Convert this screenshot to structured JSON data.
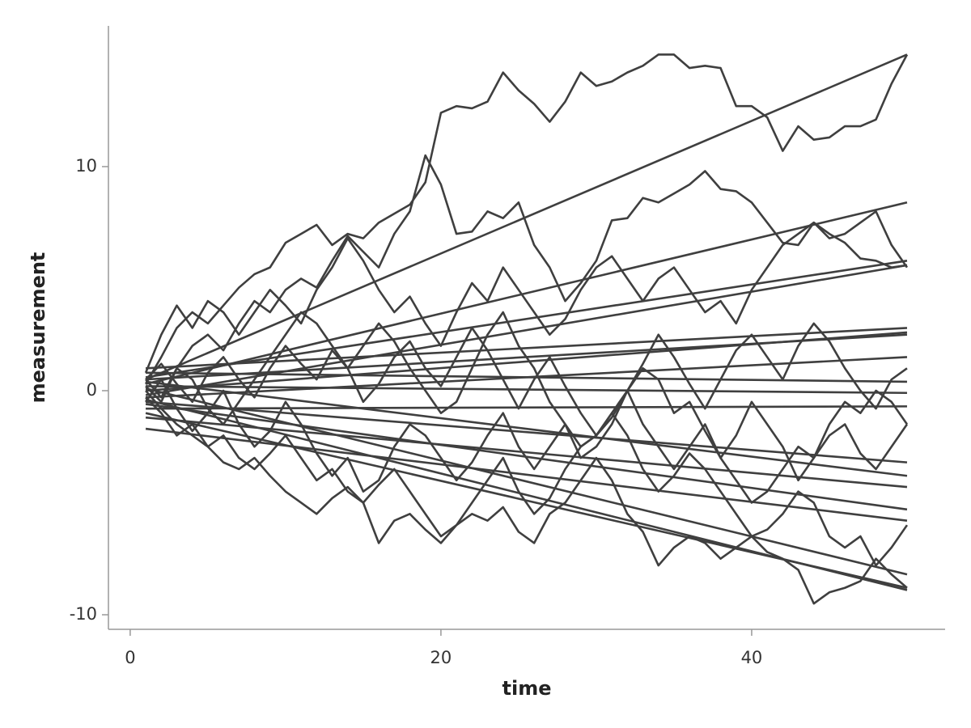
{
  "chart_data": {
    "type": "line",
    "x_label": "time",
    "y_label": "measurement",
    "color": "#3f3f3f",
    "x": [
      1,
      2,
      3,
      4,
      5,
      6,
      7,
      8,
      9,
      10,
      11,
      12,
      13,
      14,
      15,
      16,
      17,
      18,
      19,
      20,
      21,
      22,
      23,
      24,
      25,
      26,
      27,
      28,
      29,
      30,
      31,
      32,
      33,
      34,
      35,
      36,
      37,
      38,
      39,
      40,
      41,
      42,
      43,
      44,
      45,
      46,
      47,
      48,
      49,
      50
    ],
    "xlim": [
      -1.4,
      52.45
    ],
    "xticks": [
      0,
      20,
      40
    ],
    "ylim": [
      -10.65,
      16.28
    ],
    "yticks": [
      -10,
      0,
      10
    ],
    "series": [
      {
        "values": [
          0.3,
          1.5,
          2.8,
          3.5,
          3.0,
          3.8,
          4.6,
          5.2,
          5.5,
          6.6,
          7.0,
          7.4,
          6.5,
          7.0,
          6.8,
          7.5,
          7.9,
          8.3,
          9.3,
          12.4,
          12.7,
          12.6,
          12.9,
          14.2,
          13.4,
          12.8,
          12.0,
          12.9,
          14.2,
          13.6,
          13.8,
          14.2,
          14.5,
          15.0,
          15.0,
          14.4,
          14.5,
          14.4,
          12.7,
          12.7,
          12.2,
          10.7,
          11.8,
          11.2,
          11.3,
          11.8,
          11.8,
          12.1,
          13.7,
          15.0
        ]
      },
      {
        "values": [
          0.5,
          -0.3,
          1.0,
          2.0,
          2.5,
          1.8,
          3.0,
          4.0,
          3.5,
          4.5,
          5.0,
          4.6,
          5.8,
          6.9,
          6.2,
          5.5,
          7.0,
          8.0,
          10.5,
          9.2,
          7.0,
          7.1,
          8.0,
          7.7,
          8.4,
          6.5,
          5.5,
          4.0,
          4.8,
          5.8,
          7.6,
          7.7,
          8.6,
          8.4,
          8.8,
          9.2,
          9.8,
          9.0,
          8.9,
          8.4,
          7.5,
          6.6,
          6.5,
          7.5,
          7.0,
          6.6,
          5.9,
          5.8,
          5.5,
          5.6
        ]
      },
      {
        "values": [
          0.0,
          -0.8,
          -1.5,
          -2.0,
          -2.5,
          -3.2,
          -3.5,
          -3.0,
          -3.8,
          -4.5,
          -5.0,
          -5.5,
          -4.8,
          -4.3,
          -5.0,
          -6.8,
          -5.8,
          -5.5,
          -6.2,
          -6.8,
          -6.0,
          -5.5,
          -5.8,
          -5.2,
          -6.3,
          -6.8,
          -5.5,
          -5.0,
          -4.0,
          -3.0,
          -4.0,
          -5.5,
          -6.3,
          -7.8,
          -7.0,
          -6.5,
          -6.8,
          -7.5,
          -7.0,
          -6.5,
          -7.2,
          -7.5,
          -8.0,
          -9.5,
          -9.0,
          -8.8,
          -8.5,
          -7.5,
          -8.2,
          -8.8
        ]
      },
      {
        "values": [
          0.5,
          1.2,
          0.3,
          -0.5,
          0.8,
          1.5,
          0.5,
          -0.3,
          1.0,
          2.0,
          1.2,
          0.5,
          1.8,
          1.0,
          -0.5,
          0.3,
          1.5,
          2.2,
          1.0,
          0.2,
          1.5,
          2.8,
          1.8,
          0.5,
          -0.8,
          0.5,
          1.5,
          0.2,
          -1.0,
          -2.0,
          -1.2,
          0.0,
          1.2,
          2.5,
          1.5,
          0.3,
          -0.8,
          0.5,
          1.8,
          2.5,
          1.5,
          0.5,
          2.0,
          3.0,
          2.2,
          1.0,
          0.0,
          -0.8,
          0.5,
          1.0
        ]
      },
      {
        "values": [
          -0.3,
          -1.0,
          -2.0,
          -1.5,
          -2.5,
          -2.0,
          -3.0,
          -3.5,
          -2.8,
          -2.0,
          -3.0,
          -4.0,
          -3.5,
          -4.5,
          -5.0,
          -4.2,
          -3.5,
          -4.5,
          -5.5,
          -6.5,
          -6.0,
          -5.0,
          -4.0,
          -3.0,
          -4.5,
          -5.5,
          -4.8,
          -3.5,
          -2.5,
          -2.0,
          -1.0,
          -2.0,
          -3.5,
          -4.5,
          -3.8,
          -2.8,
          -3.5,
          -4.5,
          -5.5,
          -6.5,
          -6.2,
          -5.5,
          -4.5,
          -5.0,
          -6.5,
          -7.0,
          -6.5,
          -7.8,
          -7.0,
          -6.0
        ]
      },
      {
        "values": [
          0.8,
          2.5,
          3.8,
          2.8,
          4.0,
          3.5,
          2.5,
          3.5,
          4.5,
          3.8,
          3.0,
          4.5,
          5.5,
          6.8,
          5.8,
          4.5,
          3.5,
          4.2,
          3.0,
          2.0,
          3.5,
          4.8,
          4.0,
          5.5,
          4.5,
          3.5,
          2.5,
          3.2,
          4.5,
          5.5,
          6.0,
          5.0,
          4.0,
          5.0,
          5.5,
          4.5,
          3.5,
          4.0,
          3.0,
          4.5,
          5.5,
          6.5,
          7.0,
          7.5,
          6.8,
          7.0,
          7.5,
          8.0,
          6.5,
          5.5
        ]
      },
      {
        "values": [
          0.2,
          -0.5,
          1.0,
          0.5,
          -0.8,
          -1.5,
          -0.5,
          0.5,
          1.5,
          2.5,
          3.5,
          3.0,
          2.0,
          1.0,
          2.0,
          3.0,
          2.2,
          1.0,
          0.0,
          -1.0,
          -0.5,
          1.0,
          2.5,
          3.5,
          2.0,
          1.0,
          -0.5,
          -1.5,
          -2.5,
          -2.0,
          -1.0,
          0.0,
          -1.5,
          -2.5,
          -3.5,
          -2.5,
          -1.5,
          -3.0,
          -4.0,
          -5.0,
          -4.5,
          -3.5,
          -2.5,
          -3.0,
          -2.0,
          -1.5,
          -2.8,
          -3.5,
          -2.5,
          -1.5
        ]
      },
      {
        "values": [
          -0.5,
          0.5,
          -0.8,
          -1.8,
          -1.0,
          0.0,
          -1.5,
          -2.5,
          -1.8,
          -0.5,
          -1.5,
          -2.8,
          -3.8,
          -3.0,
          -4.5,
          -4.0,
          -2.5,
          -1.5,
          -2.0,
          -3.0,
          -4.0,
          -3.2,
          -2.0,
          -1.0,
          -2.5,
          -3.5,
          -2.5,
          -1.5,
          -3.0,
          -2.5,
          -1.5,
          0.0,
          1.0,
          0.5,
          -1.0,
          -0.5,
          -1.8,
          -3.0,
          -2.0,
          -0.5,
          -1.5,
          -2.5,
          -4.0,
          -3.0,
          -1.5,
          -0.5,
          -1.0,
          0.0,
          -0.5,
          -1.5
        ]
      },
      {
        "x": [
          1,
          50
        ],
        "values": [
          0.5,
          15.0
        ]
      },
      {
        "x": [
          1,
          50
        ],
        "values": [
          0.3,
          8.4
        ]
      },
      {
        "x": [
          1,
          50
        ],
        "values": [
          0.6,
          5.8
        ]
      },
      {
        "x": [
          1,
          50
        ],
        "values": [
          -0.2,
          5.6
        ]
      },
      {
        "x": [
          1,
          50
        ],
        "values": [
          1.0,
          2.8
        ]
      },
      {
        "x": [
          1,
          50
        ],
        "values": [
          0.0,
          2.6
        ]
      },
      {
        "x": [
          1,
          50
        ],
        "values": [
          0.5,
          2.5
        ]
      },
      {
        "x": [
          1,
          50
        ],
        "values": [
          -0.3,
          1.5
        ]
      },
      {
        "x": [
          1,
          50
        ],
        "values": [
          0.8,
          0.4
        ]
      },
      {
        "x": [
          1,
          50
        ],
        "values": [
          0.2,
          -0.1
        ]
      },
      {
        "x": [
          1,
          50
        ],
        "values": [
          -0.8,
          -0.7
        ]
      },
      {
        "x": [
          1,
          50
        ],
        "values": [
          -0.5,
          -3.2
        ]
      },
      {
        "x": [
          1,
          50
        ],
        "values": [
          0.4,
          -3.8
        ]
      },
      {
        "x": [
          1,
          50
        ],
        "values": [
          -1.2,
          -4.3
        ]
      },
      {
        "x": [
          1,
          50
        ],
        "values": [
          -0.6,
          -5.3
        ]
      },
      {
        "x": [
          1,
          50
        ],
        "values": [
          -1.7,
          -5.8
        ]
      },
      {
        "x": [
          1,
          50
        ],
        "values": [
          0.1,
          -8.2
        ]
      },
      {
        "x": [
          1,
          50
        ],
        "values": [
          -1.0,
          -8.8
        ]
      },
      {
        "x": [
          1,
          50
        ],
        "values": [
          -0.4,
          -8.9
        ]
      }
    ]
  }
}
